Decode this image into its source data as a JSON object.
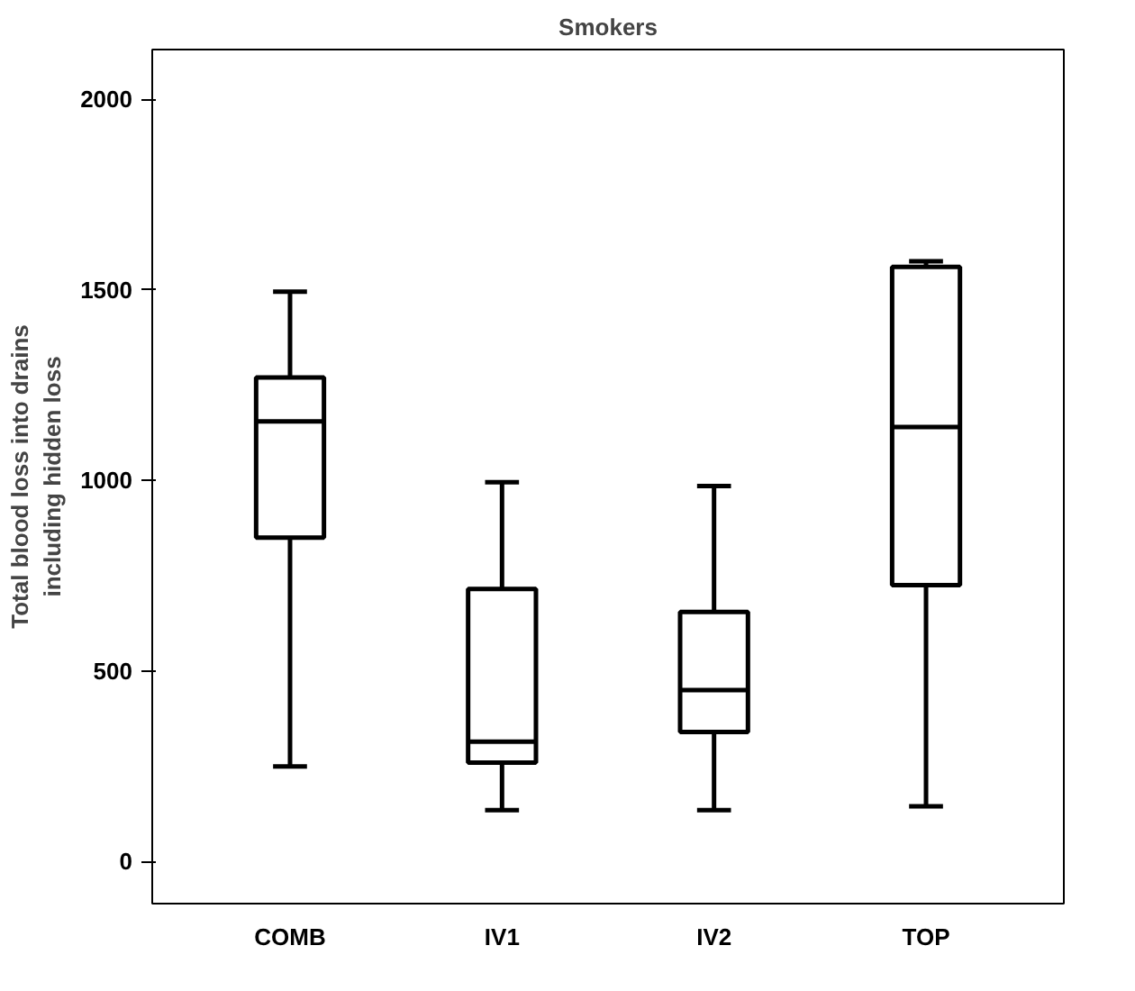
{
  "chart_data": {
    "type": "box",
    "title": "Smokers",
    "ylabel": "Total blood loss into drains\nincluding hidden loss",
    "categories": [
      "COMB",
      "IV1",
      "IV2",
      "TOP"
    ],
    "boxes": [
      {
        "low": 250,
        "q1": 850,
        "median": 1155,
        "q3": 1270,
        "high": 1495
      },
      {
        "low": 135,
        "q1": 260,
        "median": 315,
        "q3": 715,
        "high": 995
      },
      {
        "low": 135,
        "q1": 340,
        "median": 450,
        "q3": 655,
        "high": 985
      },
      {
        "low": 145,
        "q1": 725,
        "median": 1140,
        "q3": 1560,
        "high": 1575
      }
    ],
    "ylim": [
      -110,
      2130
    ],
    "yticks": [
      0,
      500,
      1000,
      1500,
      2000
    ],
    "grid": false
  }
}
